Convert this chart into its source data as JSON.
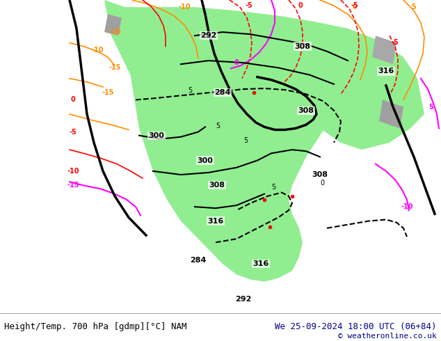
{
  "title_left": "Height/Temp. 700 hPa [gdmp][°C] NAM",
  "title_right": "We 25-09-2024 18:00 UTC (06+84)",
  "copyright": "© weatheronline.co.uk",
  "background_color": "#ffffff",
  "green_area_color": "#90ee90",
  "footer_text_color": "#00008b",
  "fig_width": 6.34,
  "fig_height": 4.9,
  "dpi": 100
}
